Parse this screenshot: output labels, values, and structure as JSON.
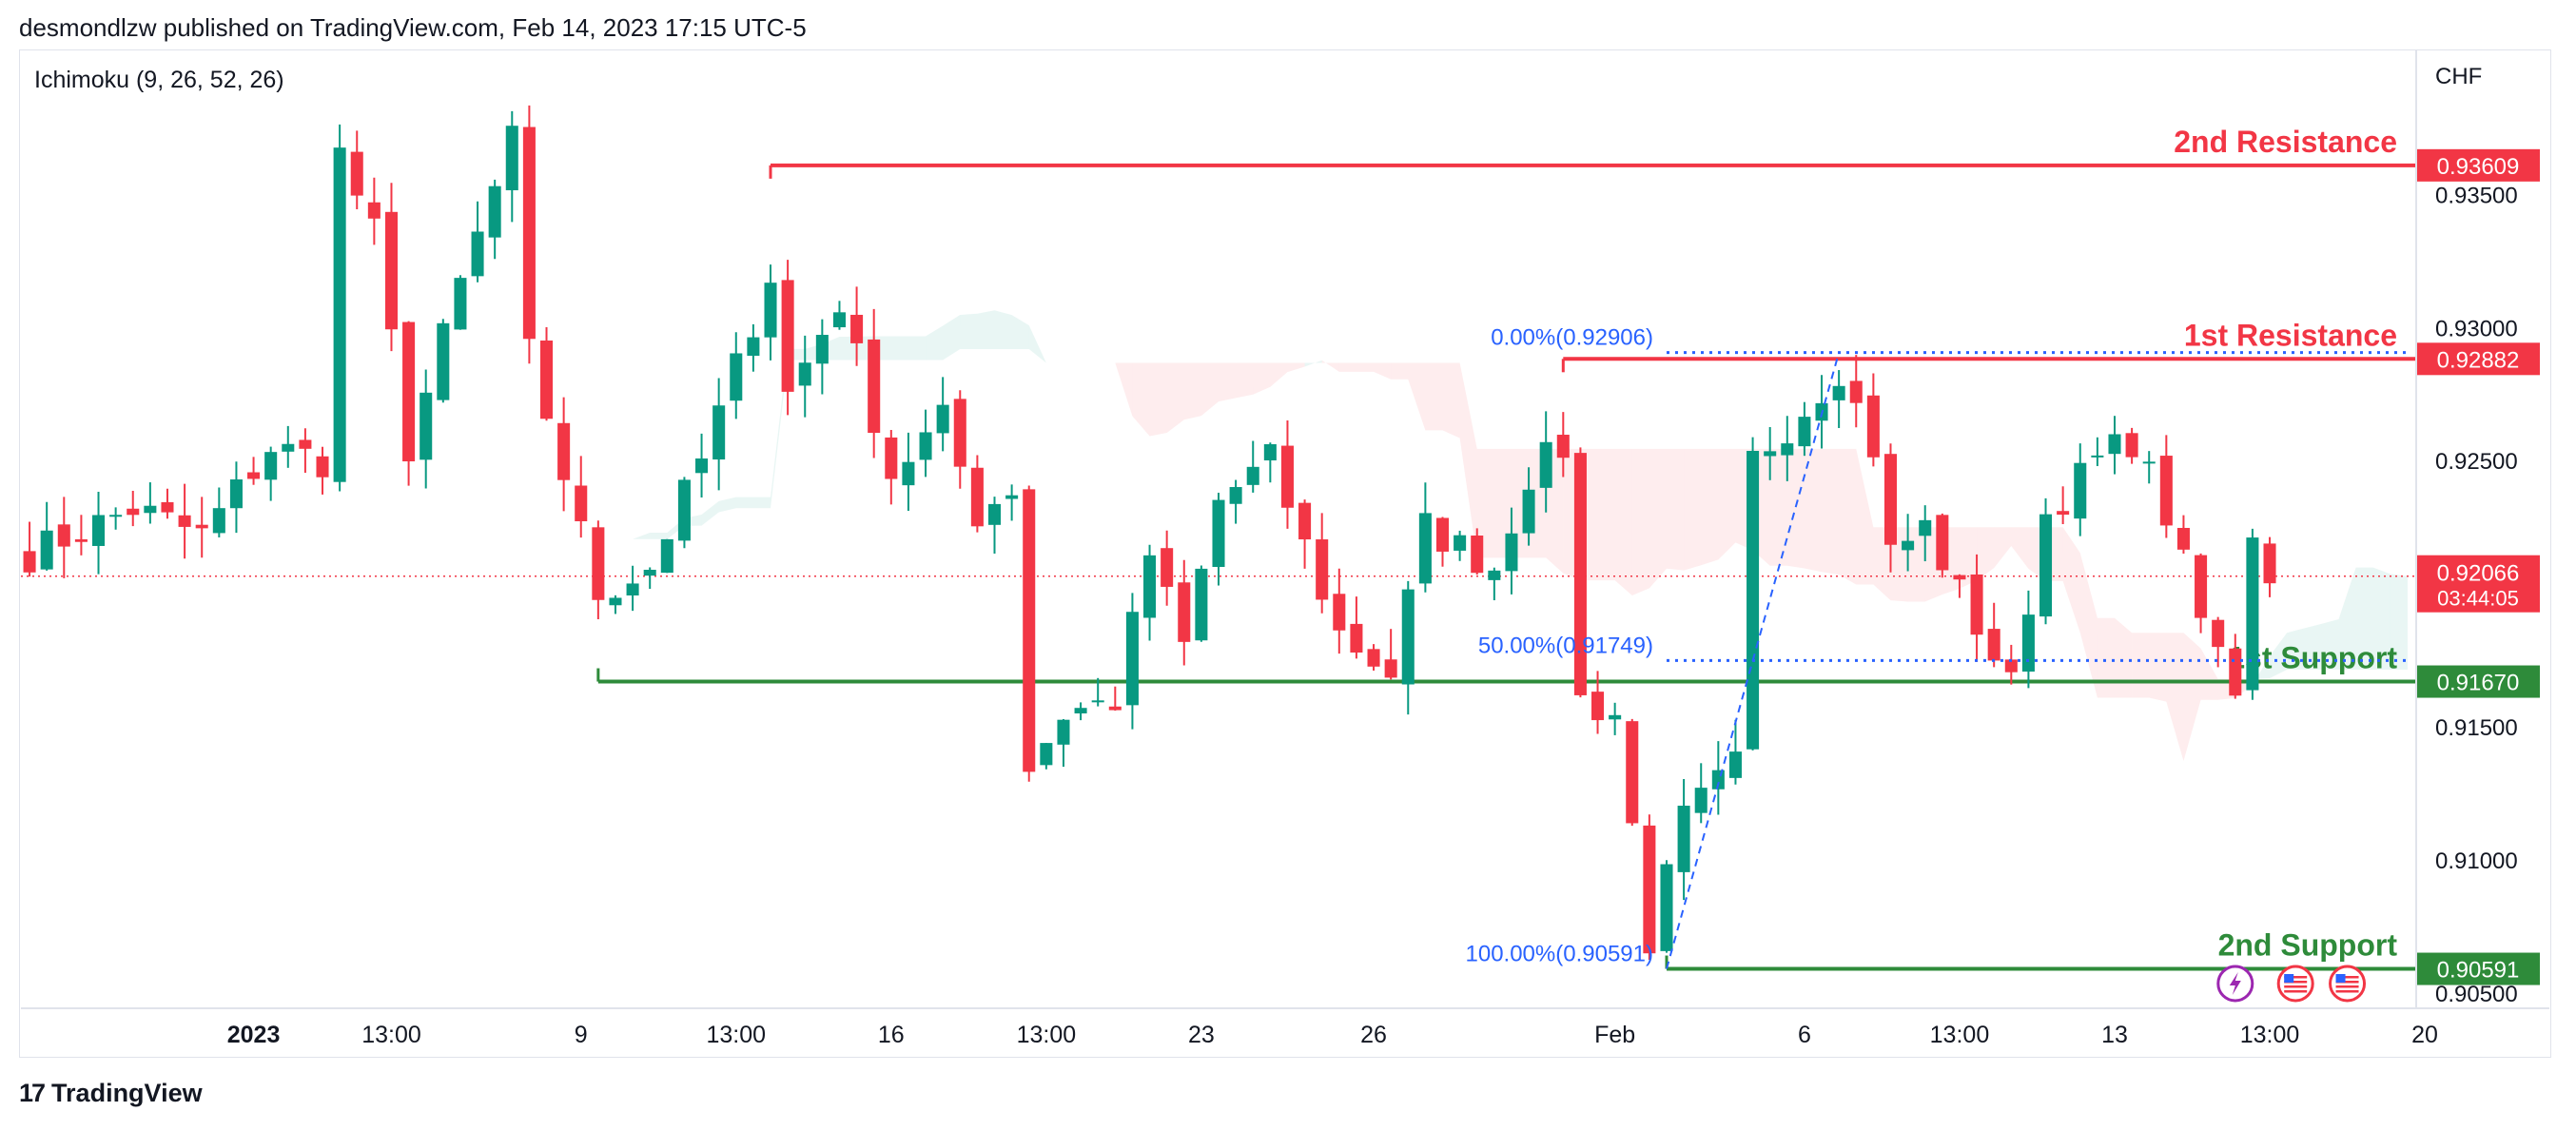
{
  "header": {
    "text": "desmondlzw published on TradingView.com, Feb 14, 2023 17:15 UTC-5"
  },
  "indicator": {
    "label": "Ichimoku (9, 26, 52, 26)"
  },
  "footer": {
    "brand": "TradingView"
  },
  "colors": {
    "up": "#089981",
    "down": "#f23645",
    "resistance": "#f23645",
    "support": "#2e8b3a",
    "fib": "#2962ff",
    "grid_text": "#131722"
  },
  "chart_data": {
    "type": "candlestick",
    "currency": "CHF",
    "ylim": [
      0.9045,
      0.9403
    ],
    "y_ticks": [
      "0.93500",
      "0.93000",
      "0.92500",
      "0.91500",
      "0.91000",
      "0.90500"
    ],
    "y_tick_values": [
      0.935,
      0.93,
      0.925,
      0.915,
      0.91,
      0.905
    ],
    "x_ticks": [
      "2023",
      "13:00",
      "9",
      "13:00",
      "16",
      "13:00",
      "23",
      "26",
      "Feb",
      "6",
      "13:00",
      "13",
      "13:00",
      "20"
    ],
    "x_tick_index": [
      13,
      21,
      32,
      41,
      50,
      59,
      68,
      78,
      92,
      103,
      112,
      121,
      130,
      139
    ],
    "bar_count": 139,
    "levels": [
      {
        "name": "2nd Resistance",
        "value": 0.93609,
        "price_label": "0.93609",
        "kind": "resistance",
        "start_index": 43
      },
      {
        "name": "1st Resistance",
        "value": 0.92882,
        "price_label": "0.92882",
        "kind": "resistance",
        "start_index": 89
      },
      {
        "name": "1st Support",
        "value": 0.9167,
        "price_label": "0.91670",
        "kind": "support",
        "start_index": 33
      },
      {
        "name": "2nd Support",
        "value": 0.90591,
        "price_label": "0.90591",
        "kind": "support",
        "start_index": 95
      }
    ],
    "current_price": {
      "value": 0.92066,
      "label": "0.92066",
      "countdown": "03:44:05"
    },
    "fibonacci": [
      {
        "label": "0.00%(0.92906)",
        "value": 0.92906
      },
      {
        "label": "50.00%(0.91749)",
        "value": 0.91749
      },
      {
        "label": "100.00%(0.90591)",
        "value": 0.90591
      }
    ],
    "fib_start_index": 95,
    "fib_end_index": 139,
    "fib_swing": [
      {
        "index": 95,
        "value": 0.90591
      },
      {
        "index": 105,
        "value": 0.92906
      }
    ],
    "ohlc_anchors": [
      [
        0,
        0.9215
      ],
      [
        6,
        0.9232
      ],
      [
        10,
        0.9222
      ],
      [
        14,
        0.9255
      ],
      [
        17,
        0.925
      ],
      [
        18,
        0.9365
      ],
      [
        20,
        0.9335
      ],
      [
        22,
        0.9255
      ],
      [
        25,
        0.9316
      ],
      [
        28,
        0.937
      ],
      [
        29,
        0.929
      ],
      [
        31,
        0.9245
      ],
      [
        33,
        0.92
      ],
      [
        36,
        0.921
      ],
      [
        39,
        0.925
      ],
      [
        41,
        0.9285
      ],
      [
        43,
        0.932
      ],
      [
        44,
        0.9275
      ],
      [
        47,
        0.931
      ],
      [
        50,
        0.9245
      ],
      [
        53,
        0.9265
      ],
      [
        55,
        0.923
      ],
      [
        57,
        0.924
      ],
      [
        58,
        0.9135
      ],
      [
        60,
        0.9155
      ],
      [
        63,
        0.916
      ],
      [
        65,
        0.9215
      ],
      [
        67,
        0.918
      ],
      [
        69,
        0.9235
      ],
      [
        72,
        0.925
      ],
      [
        76,
        0.9185
      ],
      [
        79,
        0.917
      ],
      [
        81,
        0.9225
      ],
      [
        85,
        0.921
      ],
      [
        87,
        0.9245
      ],
      [
        89,
        0.9255
      ],
      [
        90,
        0.916
      ],
      [
        92,
        0.9155
      ],
      [
        94,
        0.907
      ],
      [
        96,
        0.9115
      ],
      [
        99,
        0.9135
      ],
      [
        100,
        0.925
      ],
      [
        103,
        0.927
      ],
      [
        105,
        0.9285
      ],
      [
        107,
        0.9255
      ],
      [
        108,
        0.9215
      ],
      [
        110,
        0.9225
      ],
      [
        112,
        0.92
      ],
      [
        115,
        0.9165
      ],
      [
        117,
        0.923
      ],
      [
        120,
        0.925
      ],
      [
        122,
        0.9258
      ],
      [
        124,
        0.923
      ],
      [
        126,
        0.919
      ],
      [
        128,
        0.9165
      ],
      [
        129,
        0.9225
      ],
      [
        130,
        0.9208
      ]
    ]
  }
}
